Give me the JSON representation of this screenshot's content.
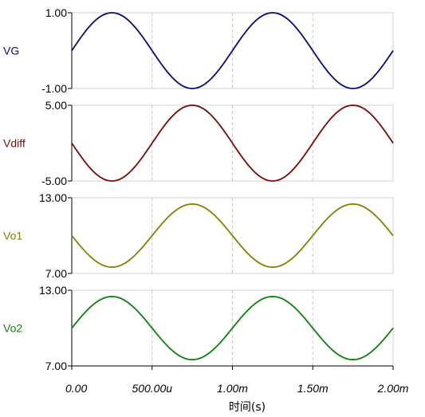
{
  "chart_data": {
    "type": "line",
    "xlabel": "时间(s)",
    "x_ticks": [
      "0.00",
      "500.00u",
      "1.00m",
      "1.50m",
      "2.00m"
    ],
    "xlim": [
      0,
      0.002
    ],
    "frequency_hz": 1000,
    "panels": [
      {
        "name": "VG",
        "ylabel": "VG",
        "color": "#0a0a78",
        "ylim": [
          -1,
          1
        ],
        "y_ticks": [
          "1.00",
          "-1.00"
        ],
        "offset": 0,
        "amplitude": 1
      },
      {
        "name": "Vdiff",
        "ylabel": "Vdiff",
        "color": "#780a0a",
        "ylim": [
          -5,
          5
        ],
        "y_ticks": [
          "5.00",
          "-5.00"
        ],
        "offset": 0,
        "amplitude": -5
      },
      {
        "name": "Vo1",
        "ylabel": "Vo1",
        "color": "#828200",
        "ylim": [
          7,
          13
        ],
        "y_ticks": [
          "13.00",
          "7.00"
        ],
        "offset": 10,
        "amplitude": -2.5
      },
      {
        "name": "Vo2",
        "ylabel": "Vo2",
        "color": "#0a820a",
        "ylim": [
          7,
          13
        ],
        "y_ticks": [
          "13.00",
          "7.00"
        ],
        "offset": 10,
        "amplitude": 2.5
      }
    ]
  }
}
